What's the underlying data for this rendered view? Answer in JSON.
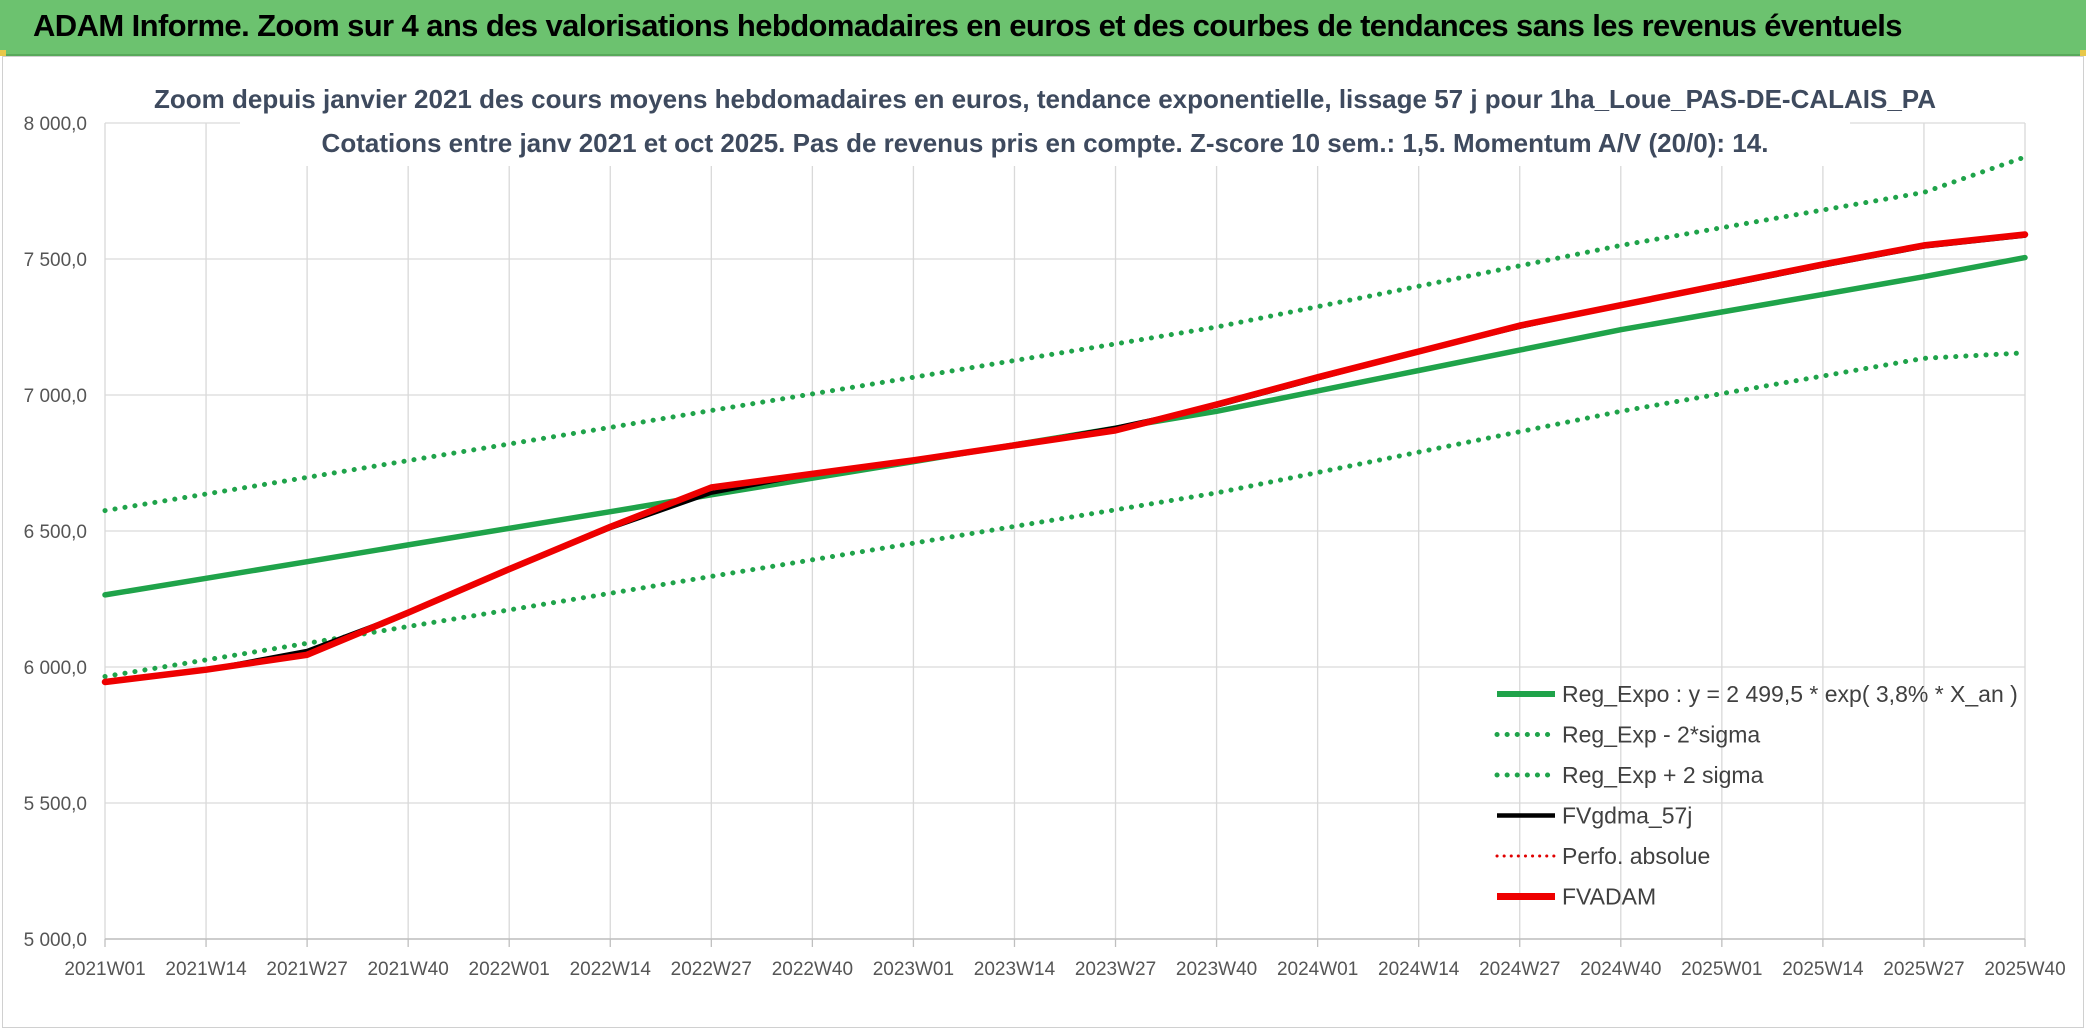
{
  "banner": {
    "title": "ADAM Informe. Zoom sur 4 ans des valorisations hebdomadaires en euros et des courbes de tendances sans les revenus éventuels"
  },
  "colors": {
    "banner_bg": "#6cc26f",
    "reg_expo": "#1fa34a",
    "bands": "#1fa34a",
    "fvgdma": "#000000",
    "perfo": "#e00000",
    "fvadam": "#ee0000",
    "grid": "#d9d9d9"
  },
  "chart_data": {
    "type": "line",
    "title": "Zoom depuis janvier 2021 des cours moyens hebdomadaires en euros, tendance exponentielle, lissage 57 j pour 1ha_Loue_PAS-DE-CALAIS_PA",
    "subtitle": "Cotations entre janv 2021 et oct 2025. Pas de revenus pris en compte. Z-score 10 sem.: 1,5. Momentum A/V (20/0): 14.",
    "xlabel": "",
    "ylabel": "",
    "ylim": [
      5000,
      8000
    ],
    "yticks": [
      "5 000,0",
      "5 500,0",
      "6 000,0",
      "6 500,0",
      "7 000,0",
      "7 500,0",
      "8 000,0"
    ],
    "ytick_values": [
      5000,
      5500,
      6000,
      6500,
      7000,
      7500,
      8000
    ],
    "categories": [
      "2021W01",
      "2021W14",
      "2021W27",
      "2021W40",
      "2022W01",
      "2022W14",
      "2022W27",
      "2022W40",
      "2023W01",
      "2023W14",
      "2023W27",
      "2023W40",
      "2024W01",
      "2024W14",
      "2024W27",
      "2024W40",
      "2025W01",
      "2025W14",
      "2025W27",
      "2025W40"
    ],
    "grid": true,
    "legend_position": "bottom-right",
    "series": [
      {
        "name": "Reg_Expo : y = 2 499,5 * exp( 3,8% *  X_an )",
        "style": "solid-thick",
        "values": [
          6265,
          6326,
          6387,
          6449,
          6510,
          6571,
          6633,
          6694,
          6755,
          6817,
          6878,
          6940,
          7015,
          7090,
          7165,
          7240,
          7305,
          7370,
          7435,
          7505
        ]
      },
      {
        "name": "Reg_Exp - 2*sigma",
        "style": "dotted",
        "values": [
          5965,
          6026,
          6087,
          6149,
          6210,
          6271,
          6333,
          6394,
          6455,
          6517,
          6578,
          6640,
          6715,
          6790,
          6865,
          6940,
          7005,
          7070,
          7135,
          7155
        ]
      },
      {
        "name": "Reg_Exp + 2 sigma",
        "style": "dotted",
        "values": [
          6575,
          6636,
          6697,
          6759,
          6820,
          6881,
          6943,
          7004,
          7065,
          7127,
          7188,
          7250,
          7325,
          7400,
          7475,
          7550,
          7615,
          7680,
          7745,
          7875
        ]
      },
      {
        "name": "FVgdma_57j",
        "style": "solid-thin",
        "values": [
          5945,
          5990,
          6060,
          6200,
          6360,
          6510,
          6640,
          6710,
          6760,
          6815,
          6880,
          6960,
          7060,
          7160,
          7250,
          7330,
          7400,
          7475,
          7545,
          7585
        ]
      },
      {
        "name": "Perfo. absolue",
        "style": "dotted-red",
        "values": [
          5945,
          5990,
          6050,
          6200,
          6360,
          6515,
          6655,
          6710,
          6760,
          6815,
          6870,
          6960,
          7060,
          7160,
          7255,
          7330,
          7405,
          7480,
          7550,
          7590
        ]
      },
      {
        "name": "FVADAM",
        "style": "solid-thick-red",
        "values": [
          5945,
          5990,
          6045,
          6200,
          6360,
          6515,
          6660,
          6710,
          6760,
          6815,
          6870,
          6965,
          7065,
          7160,
          7255,
          7330,
          7405,
          7480,
          7550,
          7590
        ]
      }
    ]
  }
}
